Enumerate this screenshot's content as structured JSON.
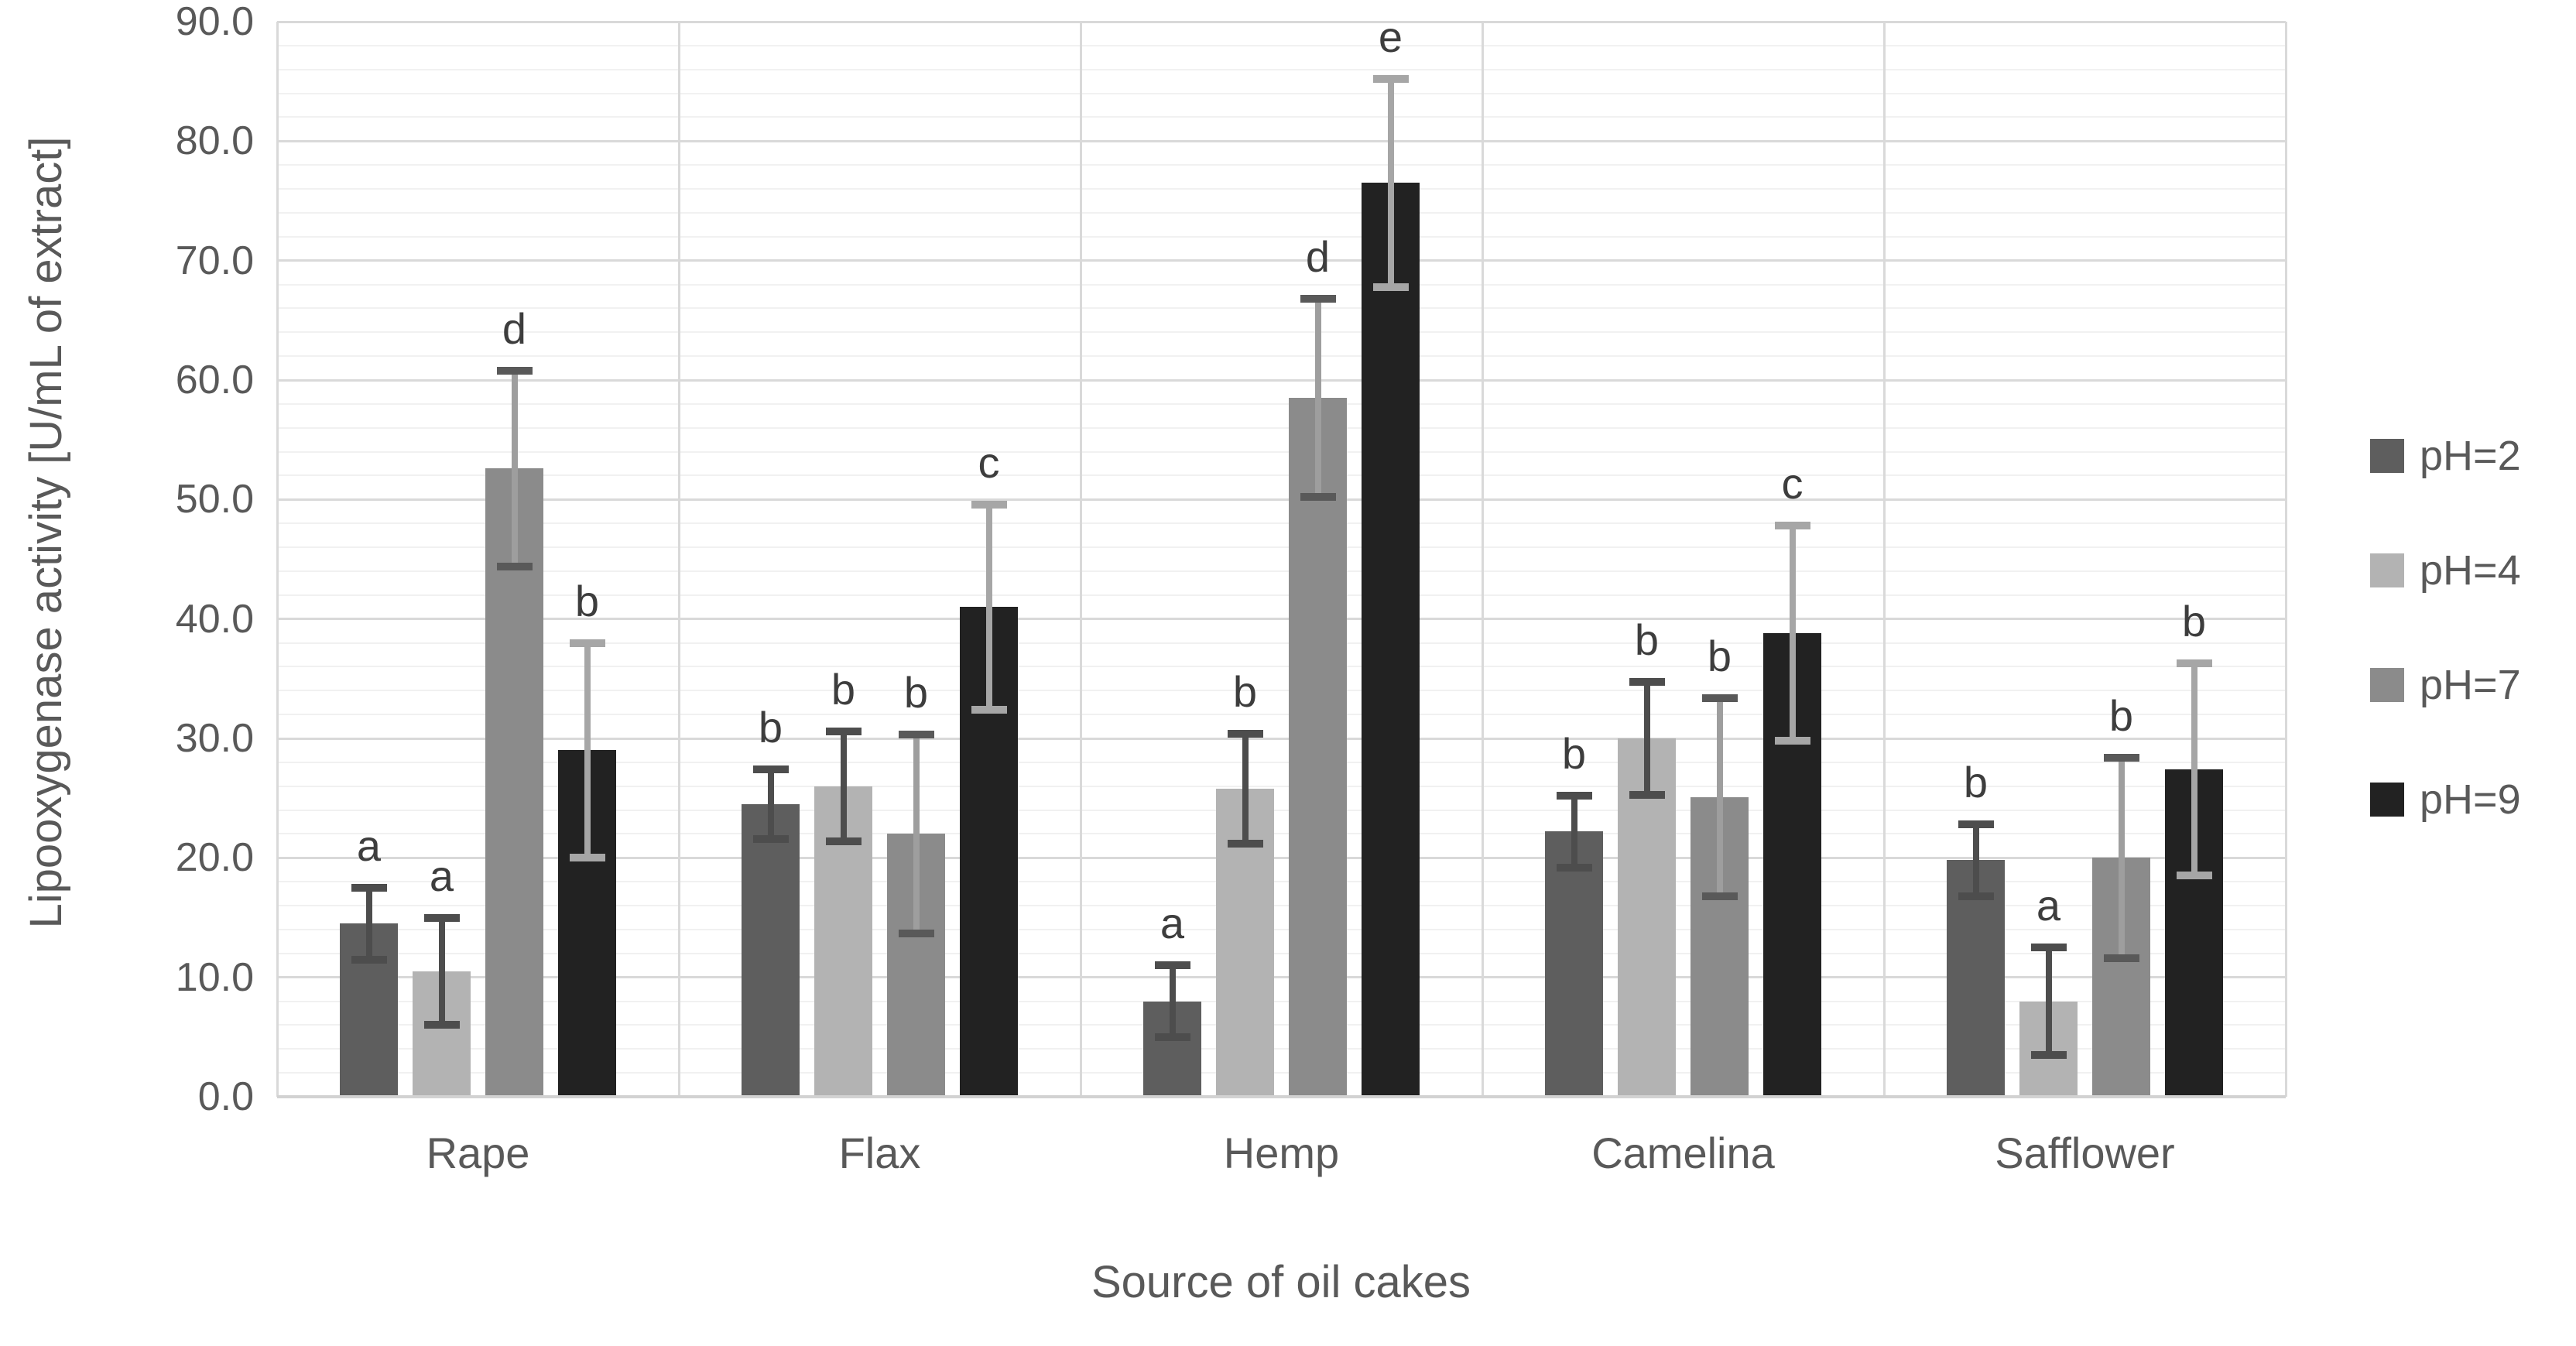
{
  "figure": {
    "background": "#ffffff"
  },
  "chart_data": {
    "type": "bar",
    "title": "",
    "xlabel": "Source of oil cakes",
    "ylabel": "Lipooxygenase activity [U/mL of extract]",
    "categories": [
      "Rape",
      "Flax",
      "Hemp",
      "Camelina",
      "Safflower"
    ],
    "series": [
      {
        "name": "pH=2",
        "color": "#5e5e5e",
        "error_line_color": "#4d4d4d",
        "error_cap_color": "#4d4d4d",
        "values": [
          14.5,
          24.5,
          8.0,
          22.2,
          19.8
        ],
        "errors": [
          3.0,
          2.9,
          3.0,
          3.0,
          3.0
        ],
        "letters": [
          "a",
          "b",
          "a",
          "b",
          "b"
        ]
      },
      {
        "name": "pH=4",
        "color": "#b3b3b3",
        "error_line_color": "#4d4d4d",
        "error_cap_color": "#4d4d4d",
        "values": [
          10.5,
          26.0,
          25.8,
          30.0,
          8.0
        ],
        "errors": [
          4.5,
          4.6,
          4.6,
          4.7,
          4.5
        ],
        "letters": [
          "a",
          "b",
          "b",
          "b",
          "a"
        ]
      },
      {
        "name": "pH=7",
        "color": "#8b8b8b",
        "error_line_color": "#9e9e9e",
        "error_cap_color": "#595959",
        "values": [
          52.6,
          22.0,
          58.5,
          25.1,
          20.0
        ],
        "errors": [
          8.2,
          8.3,
          8.3,
          8.3,
          8.4
        ],
        "letters": [
          "d",
          "b",
          "d",
          "b",
          "b"
        ]
      },
      {
        "name": "pH=9",
        "color": "#222222",
        "error_line_color": "#a6a6a6",
        "error_cap_color": "#a6a6a6",
        "values": [
          29.0,
          41.0,
          76.5,
          38.8,
          27.4
        ],
        "errors": [
          9.0,
          8.6,
          8.7,
          9.0,
          8.9
        ],
        "letters": [
          "b",
          "c",
          "e",
          "c",
          "b"
        ]
      }
    ],
    "ylim": [
      0,
      90
    ],
    "y_major_step": 10,
    "y_minor_step": 2,
    "y_tick_labels": [
      "0.0",
      "10.0",
      "20.0",
      "30.0",
      "40.0",
      "50.0",
      "60.0",
      "70.0",
      "80.0",
      "90.0"
    ],
    "grid": "horizontal major+minor, vertical category separators",
    "legend_position": "right"
  },
  "legend": {
    "items": [
      {
        "label": "pH=2",
        "color": "#5e5e5e"
      },
      {
        "label": "pH=4",
        "color": "#b3b3b3"
      },
      {
        "label": "pH=7",
        "color": "#8b8b8b"
      },
      {
        "label": "pH=9",
        "color": "#222222"
      }
    ]
  }
}
